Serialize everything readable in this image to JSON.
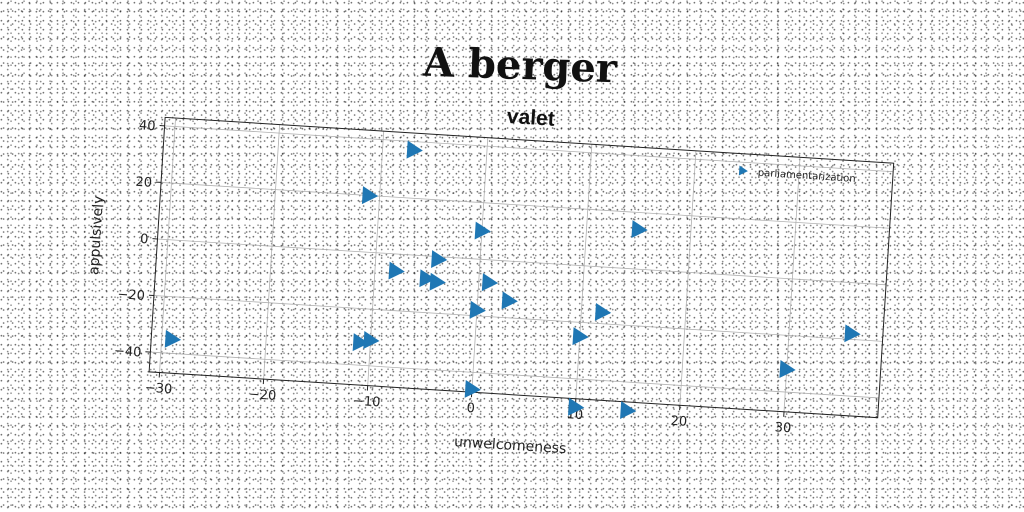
{
  "page": {
    "title": "A berger"
  },
  "colors": {
    "marker": "#1f77b4",
    "grid": "#b0b0b0",
    "axis": "#222222"
  },
  "chart_data": {
    "type": "scatter",
    "title": "valet",
    "xlabel": "unwelcomeness",
    "ylabel": "appulsively",
    "xlim": [
      -31,
      39
    ],
    "ylim": [
      -47,
      43
    ],
    "xticks": [
      -30,
      -20,
      -10,
      0,
      10,
      20,
      30
    ],
    "yticks": [
      -40,
      -20,
      0,
      20,
      40
    ],
    "x_tick_labels": [
      "−30",
      "−20",
      "−10",
      "0",
      "10",
      "20",
      "30"
    ],
    "y_tick_labels": [
      "−40",
      "−20",
      "0",
      "20",
      "40"
    ],
    "grid": true,
    "legend_position": "top-right",
    "marker": "triangle-right",
    "series": [
      {
        "name": "parliamentarization",
        "points": [
          {
            "x": -29,
            "y": -35
          },
          {
            "x": -11,
            "y": 20
          },
          {
            "x": -7,
            "y": 37
          },
          {
            "x": -8,
            "y": -6
          },
          {
            "x": -4,
            "y": -1
          },
          {
            "x": -5,
            "y": -8
          },
          {
            "x": -4,
            "y": -9
          },
          {
            "x": 0,
            "y": 10
          },
          {
            "x": 1,
            "y": -8
          },
          {
            "x": 3,
            "y": -14
          },
          {
            "x": 0,
            "y": -18
          },
          {
            "x": -10,
            "y": -31
          },
          {
            "x": -11,
            "y": -32
          },
          {
            "x": 10,
            "y": -25
          },
          {
            "x": 12,
            "y": -16
          },
          {
            "x": 15,
            "y": 14
          },
          {
            "x": 30,
            "y": -32
          },
          {
            "x": 36,
            "y": -18
          },
          {
            "x": 0,
            "y": -46
          },
          {
            "x": 10,
            "y": -50
          },
          {
            "x": 15,
            "y": -50
          }
        ]
      }
    ]
  }
}
